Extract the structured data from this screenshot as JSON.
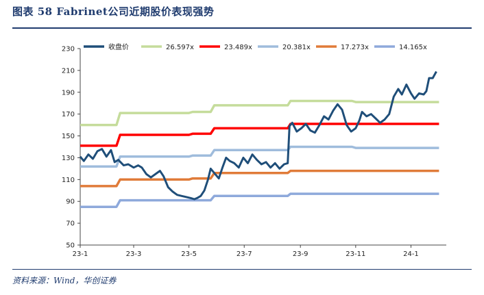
{
  "header": {
    "title": "图表 58  Fabrinet公司近期股价表现强势"
  },
  "footer": {
    "source": "资料来源：Wind，华创证券"
  },
  "chart_data": {
    "type": "line",
    "title": "",
    "xlabel": "",
    "ylabel": "",
    "x_range": [
      "23-1",
      "24-2"
    ],
    "ylim": [
      50,
      230
    ],
    "yticks": [
      50,
      70,
      90,
      110,
      130,
      150,
      170,
      190,
      210,
      230
    ],
    "xticks": [
      "23-1",
      "23-3",
      "23-5",
      "23-7",
      "23-9",
      "23-11",
      "24-1"
    ],
    "grid": false,
    "legend_position": "top",
    "series": [
      {
        "name": "收盘价",
        "color": "#1f4e79",
        "points": [
          [
            "2023-01-01",
            131
          ],
          [
            "2023-01-05",
            127
          ],
          [
            "2023-01-10",
            133
          ],
          [
            "2023-01-15",
            129
          ],
          [
            "2023-01-20",
            136
          ],
          [
            "2023-01-25",
            138
          ],
          [
            "2023-01-30",
            131
          ],
          [
            "2023-02-04",
            137
          ],
          [
            "2023-02-08",
            126
          ],
          [
            "2023-02-12",
            128
          ],
          [
            "2023-02-18",
            123
          ],
          [
            "2023-02-23",
            124
          ],
          [
            "2023-03-01",
            121
          ],
          [
            "2023-03-06",
            123
          ],
          [
            "2023-03-10",
            121
          ],
          [
            "2023-03-15",
            115
          ],
          [
            "2023-03-20",
            112
          ],
          [
            "2023-03-25",
            115
          ],
          [
            "2023-03-30",
            118
          ],
          [
            "2023-04-03",
            113
          ],
          [
            "2023-04-08",
            103
          ],
          [
            "2023-04-13",
            99
          ],
          [
            "2023-04-18",
            96
          ],
          [
            "2023-04-23",
            95
          ],
          [
            "2023-04-28",
            94
          ],
          [
            "2023-05-03",
            93
          ],
          [
            "2023-05-07",
            92
          ],
          [
            "2023-05-10",
            93
          ],
          [
            "2023-05-14",
            95
          ],
          [
            "2023-05-18",
            100
          ],
          [
            "2023-05-22",
            110
          ],
          [
            "2023-05-25",
            120
          ],
          [
            "2023-05-30",
            115
          ],
          [
            "2023-06-03",
            111
          ],
          [
            "2023-06-07",
            121
          ],
          [
            "2023-06-11",
            130
          ],
          [
            "2023-06-15",
            127
          ],
          [
            "2023-06-20",
            125
          ],
          [
            "2023-06-25",
            121
          ],
          [
            "2023-06-30",
            130
          ],
          [
            "2023-07-05",
            125
          ],
          [
            "2023-07-10",
            133
          ],
          [
            "2023-07-15",
            128
          ],
          [
            "2023-07-20",
            124
          ],
          [
            "2023-07-25",
            126
          ],
          [
            "2023-07-30",
            121
          ],
          [
            "2023-08-04",
            125
          ],
          [
            "2023-08-09",
            120
          ],
          [
            "2023-08-14",
            124
          ],
          [
            "2023-08-18",
            125
          ],
          [
            "2023-08-20",
            159
          ],
          [
            "2023-08-23",
            162
          ],
          [
            "2023-08-28",
            154
          ],
          [
            "2023-09-02",
            157
          ],
          [
            "2023-09-07",
            161
          ],
          [
            "2023-09-12",
            155
          ],
          [
            "2023-09-17",
            153
          ],
          [
            "2023-09-22",
            160
          ],
          [
            "2023-09-27",
            168
          ],
          [
            "2023-10-02",
            165
          ],
          [
            "2023-10-07",
            173
          ],
          [
            "2023-10-12",
            179
          ],
          [
            "2023-10-17",
            174
          ],
          [
            "2023-10-22",
            160
          ],
          [
            "2023-10-27",
            154
          ],
          [
            "2023-11-01",
            157
          ],
          [
            "2023-11-05",
            164
          ],
          [
            "2023-11-08",
            172
          ],
          [
            "2023-11-13",
            168
          ],
          [
            "2023-11-18",
            170
          ],
          [
            "2023-11-23",
            166
          ],
          [
            "2023-11-28",
            162
          ],
          [
            "2023-12-03",
            165
          ],
          [
            "2023-12-08",
            170
          ],
          [
            "2023-12-13",
            186
          ],
          [
            "2023-12-18",
            193
          ],
          [
            "2023-12-22",
            188
          ],
          [
            "2023-12-27",
            197
          ],
          [
            "2024-01-01",
            189
          ],
          [
            "2024-01-05",
            184
          ],
          [
            "2024-01-10",
            189
          ],
          [
            "2024-01-15",
            188
          ],
          [
            "2024-01-18",
            191
          ],
          [
            "2024-01-21",
            203
          ],
          [
            "2024-01-25",
            203
          ],
          [
            "2024-01-29",
            209
          ]
        ]
      },
      {
        "name": "26.597x",
        "color": "#c5dc9b",
        "points": [
          [
            "2023-01-01",
            160
          ],
          [
            "2023-02-10",
            160
          ],
          [
            "2023-02-14",
            171
          ],
          [
            "2023-05-01",
            171
          ],
          [
            "2023-05-05",
            172
          ],
          [
            "2023-05-25",
            172
          ],
          [
            "2023-05-29",
            178
          ],
          [
            "2023-08-18",
            178
          ],
          [
            "2023-08-21",
            182
          ],
          [
            "2023-10-28",
            182
          ],
          [
            "2023-11-01",
            181
          ],
          [
            "2024-02-01",
            181
          ]
        ]
      },
      {
        "name": "23.489x",
        "color": "#ff0000",
        "points": [
          [
            "2023-01-01",
            141
          ],
          [
            "2023-02-10",
            141
          ],
          [
            "2023-02-14",
            151
          ],
          [
            "2023-05-01",
            151
          ],
          [
            "2023-05-05",
            152
          ],
          [
            "2023-05-25",
            152
          ],
          [
            "2023-05-29",
            157
          ],
          [
            "2023-08-18",
            157
          ],
          [
            "2023-08-21",
            161
          ],
          [
            "2024-02-01",
            161
          ]
        ]
      },
      {
        "name": "20.381x",
        "color": "#9fbcdc",
        "points": [
          [
            "2023-01-01",
            122
          ],
          [
            "2023-02-10",
            122
          ],
          [
            "2023-02-14",
            131
          ],
          [
            "2023-05-01",
            131
          ],
          [
            "2023-05-05",
            132
          ],
          [
            "2023-05-25",
            132
          ],
          [
            "2023-05-29",
            137
          ],
          [
            "2023-08-18",
            137
          ],
          [
            "2023-08-21",
            140
          ],
          [
            "2023-10-28",
            140
          ],
          [
            "2023-11-01",
            139
          ],
          [
            "2024-02-01",
            139
          ]
        ]
      },
      {
        "name": "17.273x",
        "color": "#e07b39",
        "points": [
          [
            "2023-01-01",
            104
          ],
          [
            "2023-02-10",
            104
          ],
          [
            "2023-02-14",
            110
          ],
          [
            "2023-05-01",
            110
          ],
          [
            "2023-05-05",
            111
          ],
          [
            "2023-05-25",
            111
          ],
          [
            "2023-05-29",
            116
          ],
          [
            "2023-08-18",
            116
          ],
          [
            "2023-08-21",
            118
          ],
          [
            "2023-10-28",
            118
          ],
          [
            "2023-11-01",
            118
          ],
          [
            "2024-02-01",
            118
          ]
        ]
      },
      {
        "name": "14.165x",
        "color": "#8ea9db",
        "points": [
          [
            "2023-01-01",
            85
          ],
          [
            "2023-02-10",
            85
          ],
          [
            "2023-02-14",
            91
          ],
          [
            "2023-05-01",
            91
          ],
          [
            "2023-05-05",
            91
          ],
          [
            "2023-05-25",
            91
          ],
          [
            "2023-05-29",
            95
          ],
          [
            "2023-08-18",
            95
          ],
          [
            "2023-08-21",
            97
          ],
          [
            "2024-02-01",
            97
          ]
        ]
      }
    ]
  }
}
